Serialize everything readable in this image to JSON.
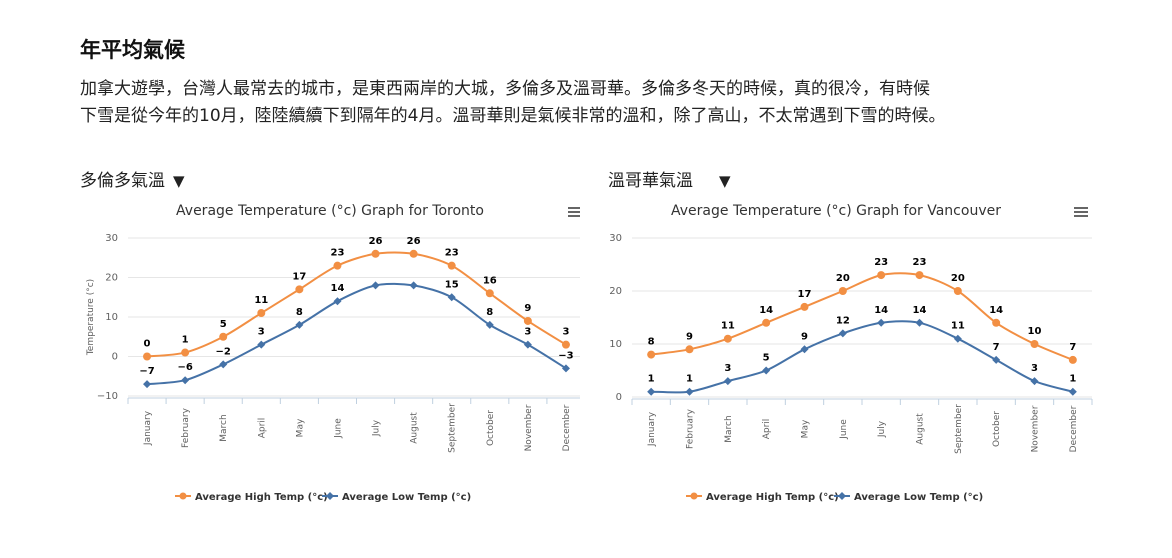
{
  "page": {
    "heading": "年平均氣候",
    "intro_line1": "加拿大遊學，台灣人最常去的城市，是東西兩岸的大城，多倫多及溫哥華。多倫多冬天的時候，真的很冷，有時候",
    "intro_line2": "下雪是從今年的10月，陸陸續續下到隔年的4月。溫哥華則是氣候非常的溫和，除了高山，不太常遇到下雪的時候。"
  },
  "selectors": {
    "toronto": {
      "label": "多倫多氣溫",
      "arrow": "▼"
    },
    "vancouver": {
      "label": "溫哥華氣溫",
      "arrow": "▼"
    }
  },
  "colors": {
    "high": "#f28f43",
    "low": "#4572a7",
    "grid": "#e6e6e6",
    "axis": "#c0d0e0",
    "menu": "#666666"
  },
  "icons": {
    "menu": "hamburger-menu-icon"
  },
  "chart_data": [
    {
      "type": "line",
      "title": "Average Temperature (°c) Graph for Toronto",
      "ylabel": "Temperature (°c)",
      "xlabel": "",
      "ylim": [
        -10,
        30
      ],
      "yticks": [
        30,
        20,
        10,
        0,
        -10
      ],
      "grid": true,
      "legend": "bottom-center",
      "categories": [
        "January",
        "February",
        "March",
        "April",
        "May",
        "June",
        "July",
        "August",
        "September",
        "October",
        "November",
        "December"
      ],
      "series": [
        {
          "name": "Average High Temp (°c)",
          "color": "#f28f43",
          "values": [
            0,
            1,
            5,
            11,
            17,
            23,
            26,
            26,
            23,
            16,
            9,
            3
          ]
        },
        {
          "name": "Average Low Temp (°c)",
          "color": "#4572a7",
          "values": [
            -7,
            -6,
            -2,
            3,
            8,
            14,
            18,
            18,
            15,
            8,
            3,
            -3
          ]
        }
      ],
      "data_labels": {
        "high": [
          "0",
          "1",
          "5",
          "11",
          "17",
          "23",
          "26",
          "26",
          "23",
          "16",
          "9",
          "3"
        ],
        "low": [
          "−7",
          "−6",
          "−2",
          "3",
          "8",
          "14",
          "",
          "",
          "15",
          "8",
          "3",
          "−3"
        ]
      }
    },
    {
      "type": "line",
      "title": "Average Temperature (°c) Graph for Vancouver",
      "ylabel": "",
      "xlabel": "",
      "ylim": [
        0,
        30
      ],
      "yticks": [
        30,
        20,
        10,
        0
      ],
      "grid": true,
      "legend": "bottom-center",
      "categories": [
        "January",
        "February",
        "March",
        "April",
        "May",
        "June",
        "July",
        "August",
        "September",
        "October",
        "November",
        "December"
      ],
      "series": [
        {
          "name": "Average High Temp (°c)",
          "color": "#f28f43",
          "values": [
            8,
            9,
            11,
            14,
            17,
            20,
            23,
            23,
            20,
            14,
            10,
            7
          ]
        },
        {
          "name": "Average Low Temp (°c)",
          "color": "#4572a7",
          "values": [
            1,
            1,
            3,
            5,
            9,
            12,
            14,
            14,
            11,
            7,
            3,
            1
          ]
        }
      ],
      "data_labels": {
        "high": [
          "8",
          "9",
          "11",
          "14",
          "17",
          "20",
          "23",
          "23",
          "20",
          "14",
          "10",
          "7"
        ],
        "low": [
          "1",
          "1",
          "3",
          "5",
          "9",
          "12",
          "14",
          "14",
          "11",
          "7",
          "3",
          "1"
        ]
      }
    }
  ]
}
